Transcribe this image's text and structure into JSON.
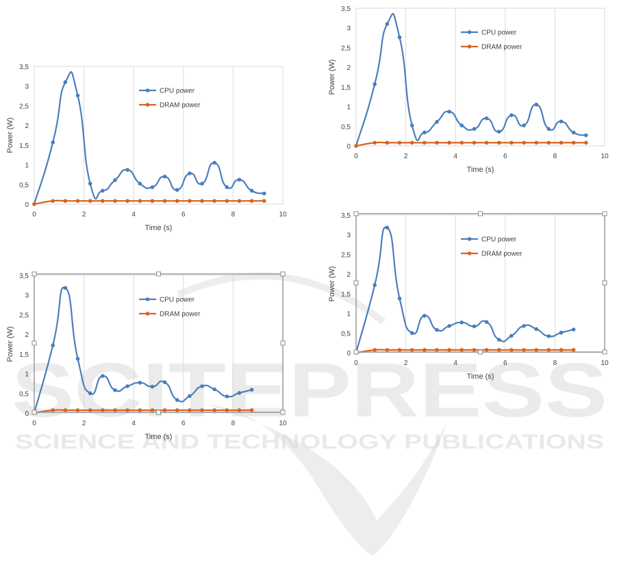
{
  "watermark": {
    "brand": "SCITEPRESS",
    "tagline": "SCIENCE AND TECHNOLOGY PUBLICATIONS"
  },
  "chart_data": [
    {
      "type": "line",
      "ylabel": "Power (W)",
      "xlabel": "Time (s)",
      "xlim": [
        0,
        10
      ],
      "ylim": [
        0,
        3.5
      ],
      "x_ticks": [
        "0",
        "2",
        "4",
        "6",
        "8",
        "10"
      ],
      "y_ticks": [
        "0",
        "0,5",
        "1",
        "1,5",
        "2",
        "2,5",
        "3",
        "3,5"
      ],
      "legend_position": "top-right",
      "grid": "vertical",
      "selected_frame": false,
      "series": [
        {
          "name": "CPU power",
          "color": "#4a7ebb",
          "x": [
            0,
            0.75,
            1.25,
            1.75,
            2.25,
            2.75,
            3.25,
            3.75,
            4.25,
            4.75,
            5.25,
            5.75,
            6.25,
            6.75,
            7.25,
            7.75,
            8.25,
            8.75,
            9.25
          ],
          "y": [
            0,
            1.57,
            3.1,
            2.76,
            0.52,
            0.34,
            0.61,
            0.87,
            0.52,
            0.43,
            0.7,
            0.36,
            0.78,
            0.52,
            1.05,
            0.43,
            0.62,
            0.34,
            0.27
          ]
        },
        {
          "name": "DRAM power",
          "color": "#d8631f",
          "x": [
            0,
            0.75,
            1.25,
            1.75,
            2.25,
            2.75,
            3.25,
            3.75,
            4.25,
            4.75,
            5.25,
            5.75,
            6.25,
            6.75,
            7.25,
            7.75,
            8.25,
            8.75,
            9.25
          ],
          "y": [
            0,
            0.08,
            0.08,
            0.08,
            0.08,
            0.08,
            0.08,
            0.08,
            0.08,
            0.08,
            0.08,
            0.08,
            0.08,
            0.08,
            0.08,
            0.08,
            0.08,
            0.08,
            0.08
          ]
        }
      ]
    },
    {
      "type": "line",
      "ylabel": "Power (W)",
      "xlabel": "Time (s)",
      "xlim": [
        0,
        10
      ],
      "ylim": [
        0,
        3.5
      ],
      "x_ticks": [
        "0",
        "2",
        "4",
        "6",
        "8",
        "10"
      ],
      "y_ticks": [
        "0",
        "0,5",
        "1",
        "1,5",
        "2",
        "2,5",
        "3",
        "3,5"
      ],
      "legend_position": "top-right",
      "grid": "vertical",
      "selected_frame": true,
      "series": [
        {
          "name": "CPU power",
          "color": "#4a7ebb",
          "x": [
            0,
            0.75,
            1.25,
            1.75,
            2.25,
            2.75,
            3.25,
            3.75,
            4.25,
            4.75,
            5.25,
            5.75,
            6.25,
            6.75,
            7.25,
            7.75,
            8.25,
            8.75
          ],
          "y": [
            0,
            1.72,
            3.18,
            1.38,
            0.5,
            0.94,
            0.58,
            0.68,
            0.77,
            0.67,
            0.78,
            0.33,
            0.43,
            0.68,
            0.6,
            0.42,
            0.51,
            0.59
          ]
        },
        {
          "name": "DRAM power",
          "color": "#d8631f",
          "x": [
            0,
            0.75,
            1.25,
            1.75,
            2.25,
            2.75,
            3.25,
            3.75,
            4.25,
            4.75,
            5.25,
            5.75,
            6.25,
            6.75,
            7.25,
            7.75,
            8.25,
            8.75
          ],
          "y": [
            0,
            0.07,
            0.07,
            0.07,
            0.07,
            0.07,
            0.07,
            0.07,
            0.07,
            0.07,
            0.07,
            0.07,
            0.07,
            0.07,
            0.07,
            0.07,
            0.07,
            0.07
          ]
        }
      ]
    },
    {
      "type": "line",
      "ylabel": "Power (W)",
      "xlabel": "Time (s)",
      "xlim": [
        0,
        10
      ],
      "ylim": [
        0,
        3.5
      ],
      "x_ticks": [
        "0",
        "2",
        "4",
        "6",
        "8",
        "10"
      ],
      "y_ticks": [
        "0",
        "0,5",
        "1",
        "1,5",
        "2",
        "2,5",
        "3",
        "3,5"
      ],
      "legend_position": "top-right",
      "grid": "vertical",
      "selected_frame": false,
      "series": [
        {
          "name": "CPU power",
          "color": "#4a7ebb",
          "x": [
            0,
            0.75,
            1.25,
            1.75,
            2.25,
            2.75,
            3.25,
            3.75,
            4.25,
            4.75,
            5.25,
            5.75,
            6.25,
            6.75,
            7.25,
            7.75,
            8.25,
            8.75,
            9.25
          ],
          "y": [
            0,
            1.57,
            3.1,
            2.76,
            0.52,
            0.34,
            0.61,
            0.87,
            0.52,
            0.43,
            0.7,
            0.36,
            0.78,
            0.52,
            1.05,
            0.43,
            0.62,
            0.34,
            0.27
          ]
        },
        {
          "name": "DRAM power",
          "color": "#d8631f",
          "x": [
            0,
            0.75,
            1.25,
            1.75,
            2.25,
            2.75,
            3.25,
            3.75,
            4.25,
            4.75,
            5.25,
            5.75,
            6.25,
            6.75,
            7.25,
            7.75,
            8.25,
            8.75,
            9.25
          ],
          "y": [
            0,
            0.08,
            0.08,
            0.08,
            0.08,
            0.08,
            0.08,
            0.08,
            0.08,
            0.08,
            0.08,
            0.08,
            0.08,
            0.08,
            0.08,
            0.08,
            0.08,
            0.08,
            0.08
          ]
        }
      ]
    },
    {
      "type": "line",
      "ylabel": "Power (W)",
      "xlabel": "Time (s)",
      "xlim": [
        0,
        10
      ],
      "ylim": [
        0,
        3.5
      ],
      "x_ticks": [
        "0",
        "2",
        "4",
        "6",
        "8",
        "10"
      ],
      "y_ticks": [
        "0",
        "0,5",
        "1",
        "1,5",
        "2",
        "2,5",
        "3",
        "3,5"
      ],
      "legend_position": "top-right",
      "grid": "vertical",
      "selected_frame": true,
      "series": [
        {
          "name": "CPU power",
          "color": "#4a7ebb",
          "x": [
            0,
            0.75,
            1.25,
            1.75,
            2.25,
            2.75,
            3.25,
            3.75,
            4.25,
            4.75,
            5.25,
            5.75,
            6.25,
            6.75,
            7.25,
            7.75,
            8.25,
            8.75
          ],
          "y": [
            0,
            1.72,
            3.18,
            1.38,
            0.5,
            0.94,
            0.58,
            0.68,
            0.77,
            0.67,
            0.78,
            0.33,
            0.43,
            0.68,
            0.6,
            0.42,
            0.51,
            0.59
          ]
        },
        {
          "name": "DRAM power",
          "color": "#d8631f",
          "x": [
            0,
            0.75,
            1.25,
            1.75,
            2.25,
            2.75,
            3.25,
            3.75,
            4.25,
            4.75,
            5.25,
            5.75,
            6.25,
            6.75,
            7.25,
            7.75,
            8.25,
            8.75
          ],
          "y": [
            0,
            0.07,
            0.07,
            0.07,
            0.07,
            0.07,
            0.07,
            0.07,
            0.07,
            0.07,
            0.07,
            0.07,
            0.07,
            0.07,
            0.07,
            0.07,
            0.07,
            0.07
          ]
        }
      ]
    }
  ]
}
